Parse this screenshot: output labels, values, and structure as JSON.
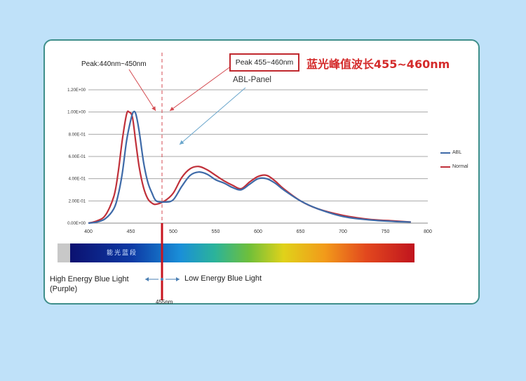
{
  "annotations": {
    "peak_box": "Peak 455~460nm",
    "chinese_title": "蓝光峰值波长455~460nm",
    "peak_left": "Peak:440nm~450nm",
    "abl_panel": "ABL-Panel",
    "high_energy": "High Energy Blue Light",
    "high_energy_sub": "(Purple)",
    "low_energy": "Low Energy Blue Light",
    "nm455": "455nm",
    "spectrum_label": "能光蓝段"
  },
  "colors": {
    "abl": "#3e6aa8",
    "normal": "#c0303a",
    "accent_red": "#d42b2b",
    "arrow_blue": "#6aa6cc",
    "grid": "#a8a8a8"
  },
  "chart_data": {
    "type": "line",
    "title": "",
    "xlabel": "",
    "ylabel": "",
    "xlim": [
      400,
      800
    ],
    "ylim": [
      0,
      1.2
    ],
    "x_ticks": [
      "400",
      "450",
      "500",
      "550",
      "600",
      "650",
      "700",
      "750",
      "800"
    ],
    "y_ticks": [
      "0.00E+00",
      "2.00E-01",
      "4.00E-01",
      "6.00E-01",
      "8.00E-01",
      "1.00E+00",
      "1.20E+00"
    ],
    "grid": true,
    "legend_position": "right",
    "series": [
      {
        "name": "ABL",
        "color": "#3e6aa8",
        "points": [
          [
            400,
            0.0
          ],
          [
            410,
            0.01
          ],
          [
            420,
            0.04
          ],
          [
            430,
            0.13
          ],
          [
            435,
            0.25
          ],
          [
            440,
            0.45
          ],
          [
            445,
            0.74
          ],
          [
            450,
            0.93
          ],
          [
            453,
            1.0
          ],
          [
            456,
            0.98
          ],
          [
            460,
            0.82
          ],
          [
            465,
            0.55
          ],
          [
            470,
            0.37
          ],
          [
            475,
            0.27
          ],
          [
            480,
            0.2
          ],
          [
            490,
            0.19
          ],
          [
            500,
            0.21
          ],
          [
            510,
            0.33
          ],
          [
            520,
            0.43
          ],
          [
            530,
            0.46
          ],
          [
            540,
            0.44
          ],
          [
            550,
            0.39
          ],
          [
            560,
            0.36
          ],
          [
            570,
            0.32
          ],
          [
            580,
            0.3
          ],
          [
            590,
            0.35
          ],
          [
            600,
            0.4
          ],
          [
            610,
            0.4
          ],
          [
            620,
            0.36
          ],
          [
            630,
            0.3
          ],
          [
            650,
            0.2
          ],
          [
            670,
            0.13
          ],
          [
            700,
            0.06
          ],
          [
            730,
            0.03
          ],
          [
            760,
            0.015
          ],
          [
            780,
            0.01
          ]
        ]
      },
      {
        "name": "Normal",
        "color": "#c0303a",
        "points": [
          [
            400,
            0.0
          ],
          [
            410,
            0.02
          ],
          [
            420,
            0.07
          ],
          [
            430,
            0.24
          ],
          [
            435,
            0.45
          ],
          [
            440,
            0.75
          ],
          [
            445,
            0.98
          ],
          [
            448,
            1.0
          ],
          [
            452,
            0.95
          ],
          [
            456,
            0.72
          ],
          [
            460,
            0.5
          ],
          [
            465,
            0.32
          ],
          [
            470,
            0.22
          ],
          [
            475,
            0.18
          ],
          [
            480,
            0.17
          ],
          [
            490,
            0.2
          ],
          [
            500,
            0.27
          ],
          [
            510,
            0.41
          ],
          [
            520,
            0.49
          ],
          [
            530,
            0.51
          ],
          [
            540,
            0.48
          ],
          [
            550,
            0.43
          ],
          [
            560,
            0.38
          ],
          [
            570,
            0.34
          ],
          [
            580,
            0.31
          ],
          [
            590,
            0.37
          ],
          [
            600,
            0.42
          ],
          [
            610,
            0.43
          ],
          [
            620,
            0.38
          ],
          [
            630,
            0.31
          ],
          [
            650,
            0.2
          ],
          [
            670,
            0.13
          ],
          [
            700,
            0.07
          ],
          [
            730,
            0.035
          ],
          [
            760,
            0.02
          ],
          [
            780,
            0.01
          ]
        ]
      }
    ]
  }
}
